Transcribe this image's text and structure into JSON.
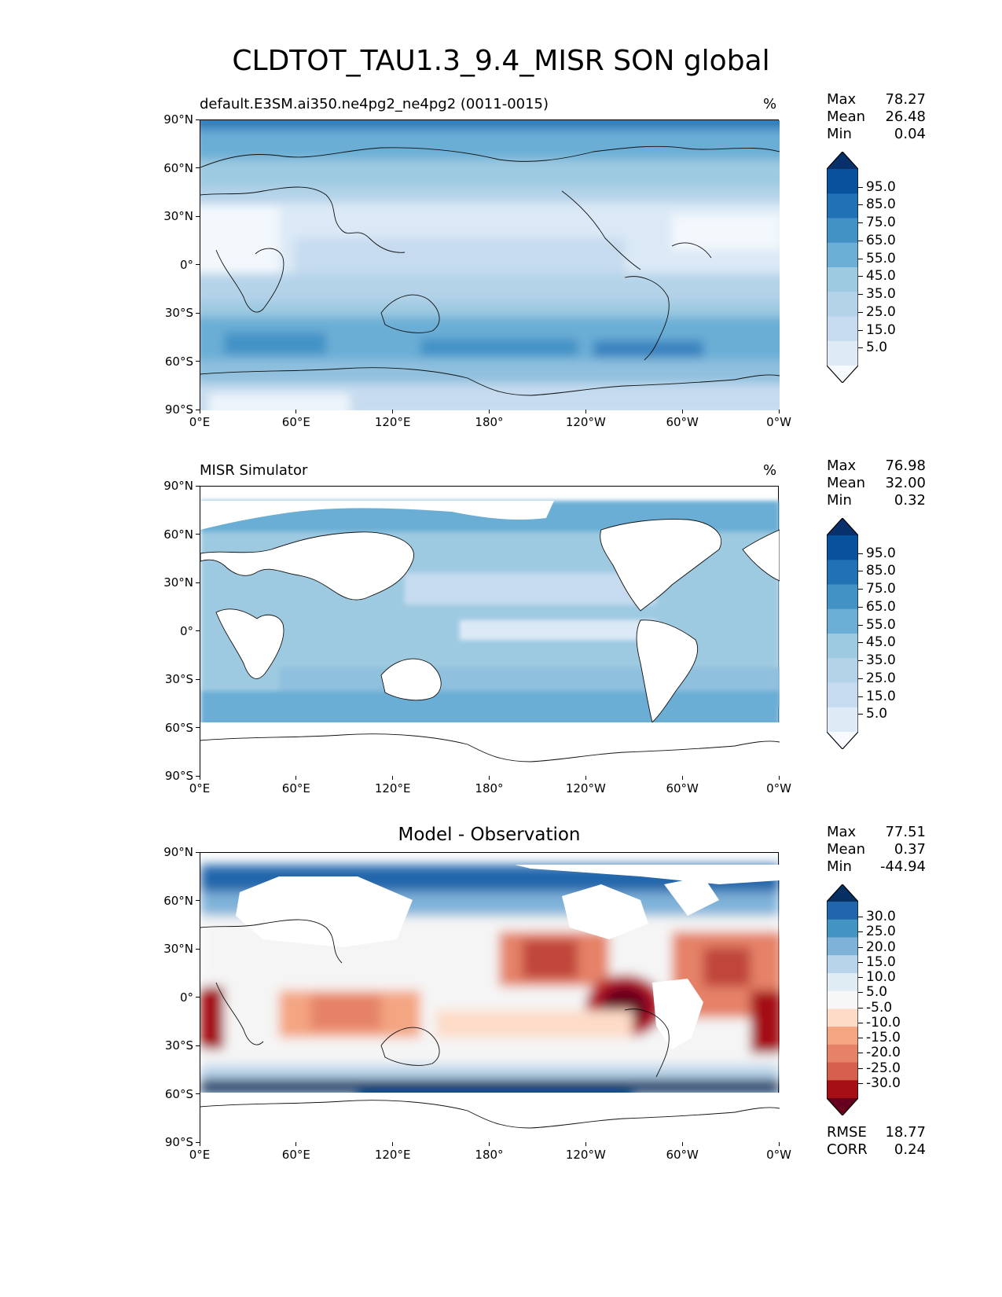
{
  "title": "CLDTOT_TAU1.3_9.4_MISR SON global",
  "lon_ticks": [
    "0°E",
    "60°E",
    "120°E",
    "180°",
    "120°W",
    "60°W",
    "0°W"
  ],
  "lat_ticks": [
    "90°N",
    "60°N",
    "30°N",
    "0°",
    "30°S",
    "60°S",
    "90°S"
  ],
  "colors": {
    "blues": [
      "#f7fbff",
      "#deebf7",
      "#c6dbef",
      "#b4d3e9",
      "#9ecae1",
      "#6baed6",
      "#4292c6",
      "#2171b5",
      "#08519c",
      "#08306b"
    ],
    "diverging": [
      "#67001f",
      "#a50f15",
      "#d6604d",
      "#e58267",
      "#f4a582",
      "#fddbc7",
      "#f7f7f7",
      "#e0ecf4",
      "#b7d4ea",
      "#7fb2d9",
      "#4393c3",
      "#2166ac",
      "#053061"
    ]
  },
  "panels": [
    {
      "subtitle": "default.E3SM.ai350.ne4pg2_ne4pg2 (0011-0015)",
      "units": "%",
      "stats": {
        "max_label": "Max",
        "max": "78.27",
        "mean_label": "Mean",
        "mean": "26.48",
        "min_label": "Min",
        "min": "0.04"
      },
      "colorbar_ticks": [
        "95.0",
        "85.0",
        "75.0",
        "65.0",
        "55.0",
        "45.0",
        "35.0",
        "25.0",
        "15.0",
        "5.0"
      ]
    },
    {
      "subtitle": "MISR Simulator",
      "units": "%",
      "stats": {
        "max_label": "Max",
        "max": "76.98",
        "mean_label": "Mean",
        "mean": "32.00",
        "min_label": "Min",
        "min": "0.32"
      },
      "colorbar_ticks": [
        "95.0",
        "85.0",
        "75.0",
        "65.0",
        "55.0",
        "45.0",
        "35.0",
        "25.0",
        "15.0",
        "5.0"
      ]
    },
    {
      "center_title": "Model - Observation",
      "stats": {
        "max_label": "Max",
        "max": "77.51",
        "mean_label": "Mean",
        "mean": "0.37",
        "min_label": "Min",
        "min": "-44.94"
      },
      "colorbar_ticks": [
        "30.0",
        "25.0",
        "20.0",
        "15.0",
        "10.0",
        "5.0",
        "-5.0",
        "-10.0",
        "-15.0",
        "-20.0",
        "-25.0",
        "-30.0"
      ],
      "extra_stats": {
        "rmse_label": "RMSE",
        "rmse": "18.77",
        "corr_label": "CORR",
        "corr": "0.24"
      }
    }
  ]
}
